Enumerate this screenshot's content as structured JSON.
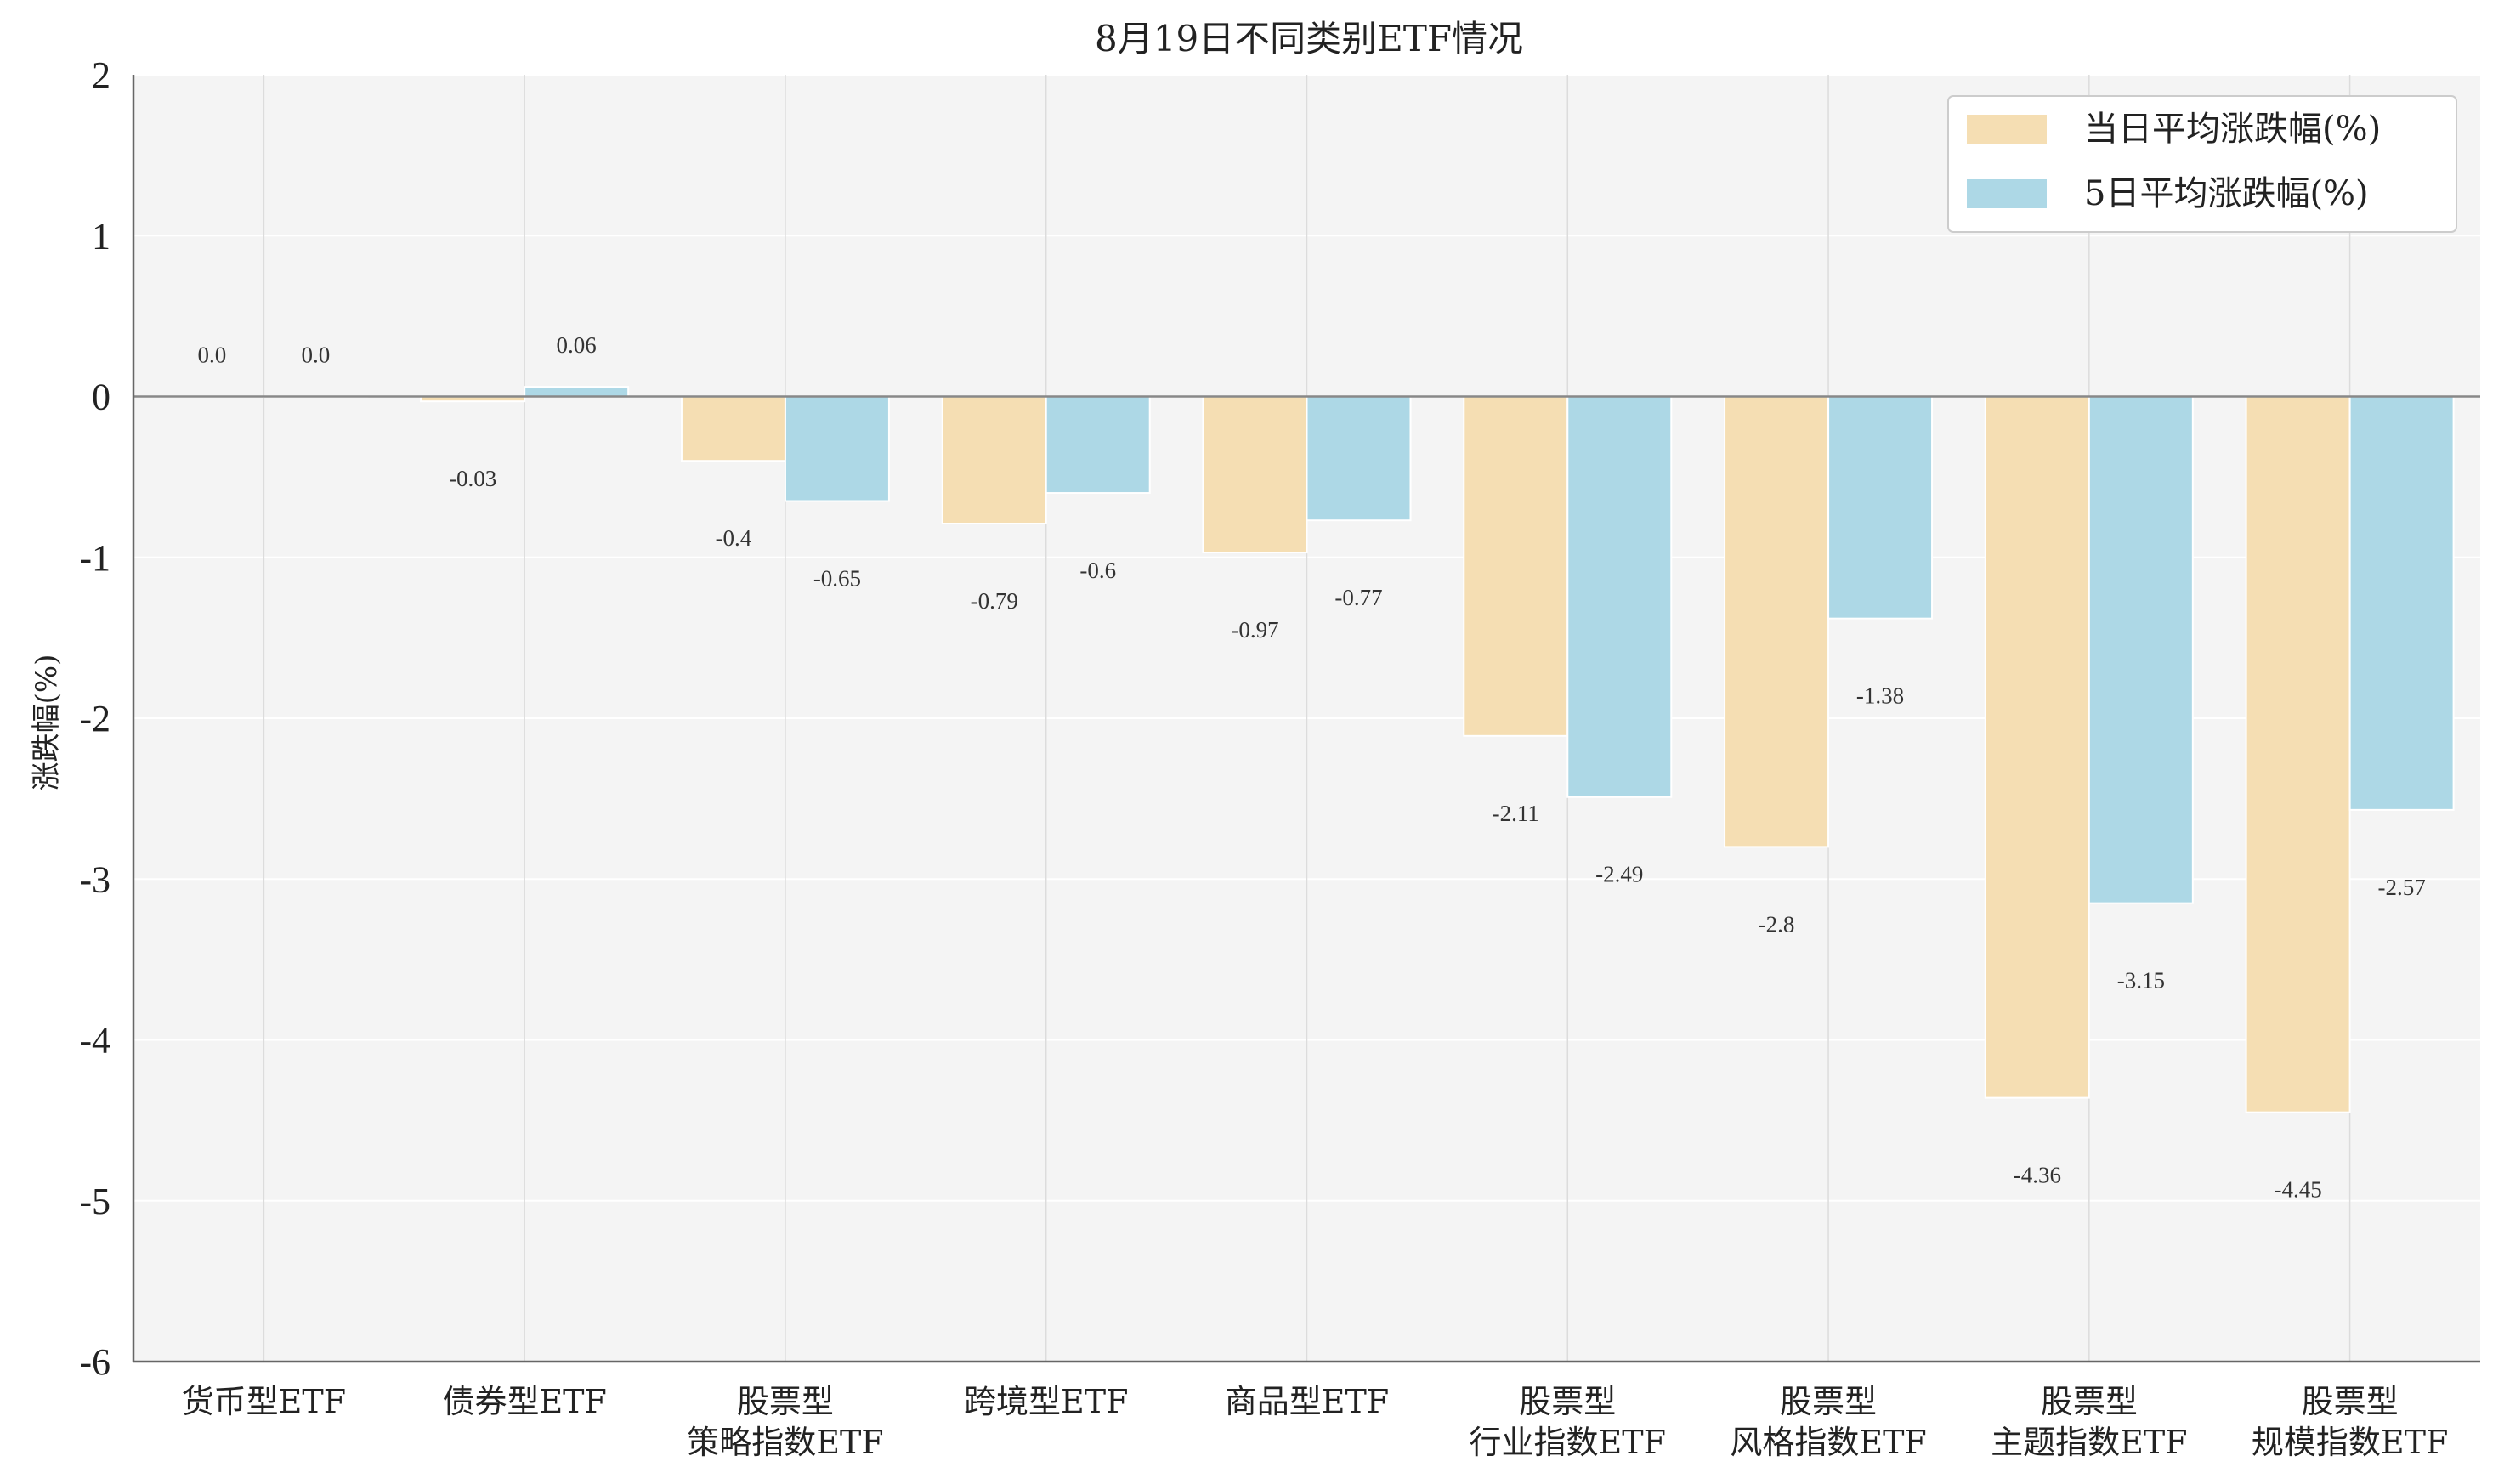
{
  "chart_data": {
    "type": "bar",
    "title": "8月19日不同类别ETF情况",
    "xlabel": "",
    "ylabel": "涨跌幅(%)",
    "ylim": [
      -6,
      2
    ],
    "yticks": [
      2,
      1,
      0,
      -1,
      -2,
      -3,
      -4,
      -5,
      -6
    ],
    "grid": true,
    "legend_position": "top-right",
    "categories": [
      "货币型ETF",
      "债券型ETF",
      "股票型\n策略指数ETF",
      "跨境型ETF",
      "商品型ETF",
      "股票型\n行业指数ETF",
      "股票型\n风格指数ETF",
      "股票型\n主题指数ETF",
      "股票型\n规模指数ETF"
    ],
    "series": [
      {
        "name": "当日平均涨跌幅(%)",
        "color": "#f5deb3",
        "values": [
          0.0,
          -0.03,
          -0.4,
          -0.79,
          -0.97,
          -2.11,
          -2.8,
          -4.36,
          -4.45
        ],
        "labels": [
          "0.0",
          "-0.03",
          "-0.4",
          "-0.79",
          "-0.97",
          "-2.11",
          "-2.8",
          "-4.36",
          "-4.45"
        ]
      },
      {
        "name": "5日平均涨跌幅(%)",
        "color": "#add8e6",
        "values": [
          0.0,
          0.06,
          -0.65,
          -0.6,
          -0.77,
          -2.49,
          -1.38,
          -3.15,
          -2.57
        ],
        "labels": [
          "0.0",
          "0.06",
          "-0.65",
          "-0.6",
          "-0.77",
          "-2.49",
          "-1.38",
          "-3.15",
          "-2.57"
        ]
      }
    ]
  }
}
